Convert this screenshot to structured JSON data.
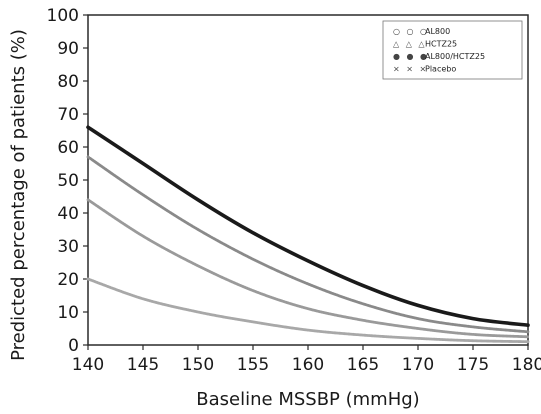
{
  "chart_data": {
    "type": "line",
    "title": "",
    "xlabel": "Baseline MSSBP (mmHg)",
    "ylabel": "Predicted percentage of patients (%)",
    "xlim": [
      140,
      180
    ],
    "ylim": [
      0,
      100
    ],
    "x_ticks": [
      "140",
      "145",
      "150",
      "155",
      "160",
      "165",
      "170",
      "175",
      "180"
    ],
    "y_ticks": [
      "0",
      "10",
      "20",
      "30",
      "40",
      "50",
      "60",
      "70",
      "80",
      "90",
      "100"
    ],
    "legend_position": "top-right",
    "x": [
      140,
      145,
      150,
      155,
      160,
      165,
      170,
      175,
      180
    ],
    "series": [
      {
        "name": "AL800",
        "marker": "○",
        "color": "#8a8a8a",
        "values": [
          57,
          45.5,
          35,
          26,
          18.5,
          12.5,
          8,
          5.5,
          4
        ]
      },
      {
        "name": "HCTZ25",
        "marker": "△",
        "color": "#9a9a9a",
        "values": [
          44,
          33,
          24,
          16.5,
          11,
          7.5,
          5,
          3.2,
          2.5
        ]
      },
      {
        "name": "AL800/HCTZ25",
        "marker": "●",
        "color": "#1a1a1a",
        "values": [
          66,
          55,
          44,
          34,
          25.5,
          18,
          12,
          8,
          6
        ]
      },
      {
        "name": "Placebo",
        "marker": "×",
        "color": "#a8a8a8",
        "values": [
          20,
          14,
          10,
          7,
          4.5,
          3,
          2,
          1.3,
          1
        ]
      }
    ]
  }
}
